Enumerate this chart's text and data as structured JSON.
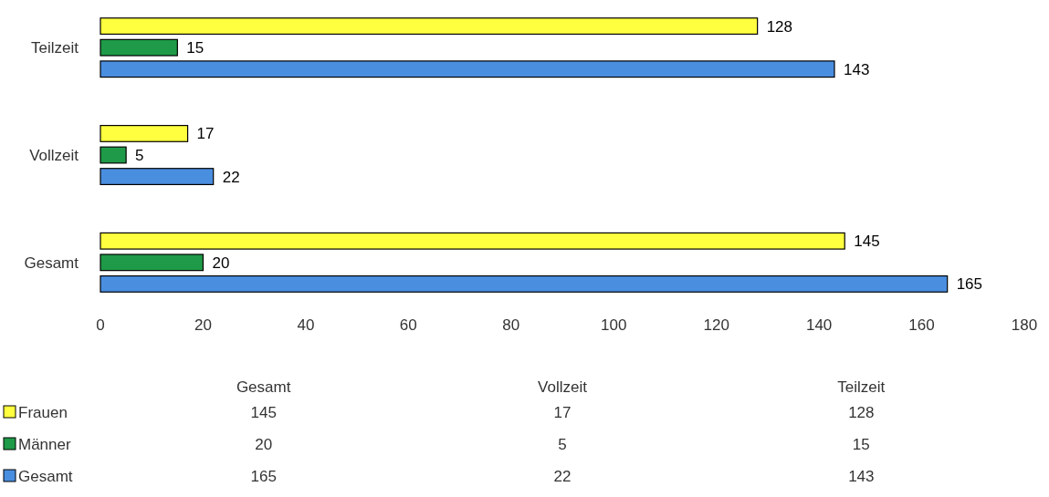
{
  "chart_data": {
    "type": "bar",
    "orientation": "horizontal",
    "categories": [
      "Teilzeit",
      "Vollzeit",
      "Gesamt"
    ],
    "series": [
      {
        "name": "Frauen",
        "color": "#ffff40",
        "values": [
          128,
          17,
          145
        ],
        "value_labels": [
          "128",
          "17",
          "145"
        ]
      },
      {
        "name": "Männer",
        "color": "#1f9a48",
        "values": [
          15,
          5,
          20
        ],
        "value_labels": [
          "15",
          "5",
          "20"
        ]
      },
      {
        "name": "Gesamt",
        "color": "#4a8ee0",
        "values": [
          143,
          22,
          165
        ],
        "value_labels": [
          "143",
          "22",
          "165"
        ]
      }
    ],
    "xlim": [
      0,
      180
    ],
    "xticks": [
      0,
      20,
      40,
      60,
      80,
      100,
      120,
      140,
      160,
      180
    ],
    "legend": "bottom",
    "grid": false
  }
}
